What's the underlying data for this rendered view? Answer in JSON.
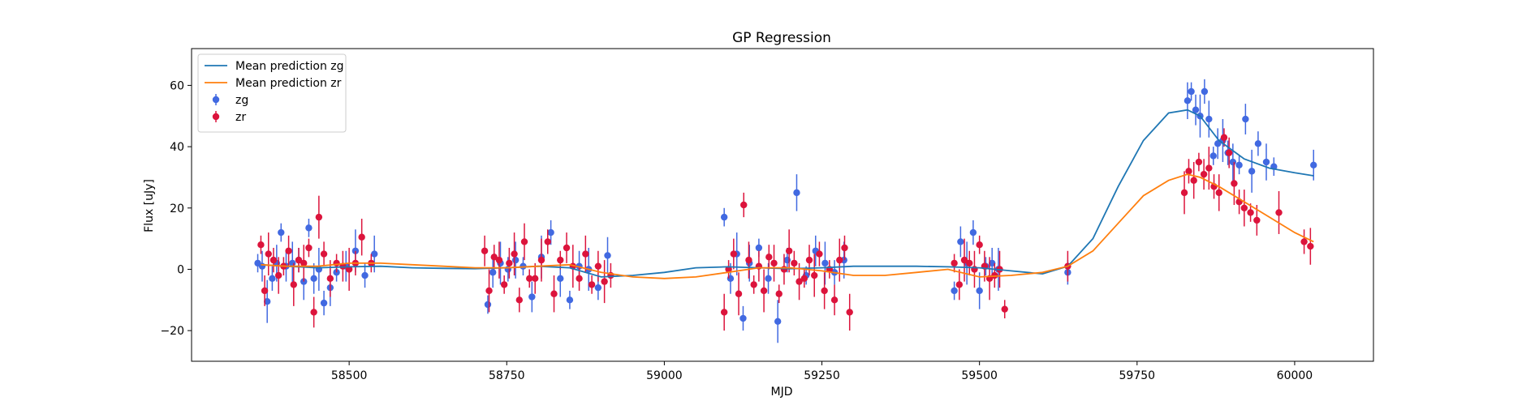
{
  "chart_data": {
    "type": "scatter",
    "title": "GP Regression",
    "xlabel": "MJD",
    "ylabel": "Flux [uJy]",
    "xlim": [
      58250,
      60125
    ],
    "ylim": [
      -30,
      72
    ],
    "xticks": [
      58500,
      58750,
      59000,
      59250,
      59500,
      59750,
      60000
    ],
    "yticks": [
      -20,
      0,
      20,
      40,
      60
    ],
    "grid": false,
    "legend_position": "top-left",
    "legend": [
      "Mean prediction zg",
      "Mean prediction zr",
      "zg",
      "zr"
    ],
    "colors": {
      "zg_line": "#1f77b4",
      "zr_line": "#ff7f0e",
      "zg_points": "#4169e1",
      "zr_points": "#dc143c"
    },
    "series": [
      {
        "name": "Mean prediction zg",
        "kind": "line",
        "x": [
          58360,
          58400,
          58450,
          58500,
          58550,
          58600,
          58650,
          58700,
          58750,
          58800,
          58850,
          58900,
          58950,
          59000,
          59050,
          59100,
          59150,
          59200,
          59250,
          59300,
          59350,
          59400,
          59450,
          59500,
          59550,
          59600,
          59640,
          59680,
          59720,
          59760,
          59800,
          59830,
          59850,
          59880,
          59920,
          59960,
          60000,
          60030
        ],
        "y": [
          1.5,
          1,
          0.5,
          0.8,
          1,
          0.5,
          0.3,
          0.2,
          0.5,
          1,
          0.5,
          -2.5,
          -2,
          -1,
          0.5,
          0.8,
          0.5,
          0.2,
          0.5,
          1,
          1,
          1,
          0.8,
          0.5,
          -0.5,
          -1.5,
          1,
          10,
          27,
          42,
          51,
          52,
          50,
          42,
          36,
          33,
          31.5,
          30.5
        ]
      },
      {
        "name": "Mean prediction zr",
        "kind": "line",
        "x": [
          58360,
          58400,
          58450,
          58500,
          58550,
          58600,
          58650,
          58700,
          58750,
          58800,
          58850,
          58900,
          58950,
          59000,
          59050,
          59100,
          59150,
          59200,
          59250,
          59300,
          59350,
          59400,
          59450,
          59500,
          59550,
          59600,
          59640,
          59680,
          59720,
          59760,
          59800,
          59830,
          59850,
          59880,
          59920,
          59960,
          60000,
          60030
        ],
        "y": [
          1.5,
          1,
          1,
          2,
          2,
          1.5,
          1,
          0.5,
          0.5,
          1,
          1.5,
          -1,
          -2.5,
          -3,
          -2.5,
          -1,
          0.5,
          0.5,
          -0.5,
          -2,
          -2,
          -1,
          0,
          -2.5,
          -2,
          -1,
          1,
          6,
          15,
          24,
          29,
          31,
          30,
          27,
          22,
          17,
          12,
          9
        ]
      },
      {
        "name": "zg",
        "kind": "points",
        "x": [
          58355,
          58362,
          58370,
          58378,
          58385,
          58392,
          58400,
          58410,
          58420,
          58428,
          58436,
          58444,
          58452,
          58460,
          58470,
          58480,
          58495,
          58510,
          58525,
          58540,
          58720,
          58728,
          58740,
          58752,
          58764,
          58776,
          58790,
          58805,
          58820,
          58835,
          58850,
          58865,
          58880,
          58895,
          58910,
          59095,
          59105,
          59115,
          59125,
          59135,
          59150,
          59165,
          59180,
          59195,
          59210,
          59225,
          59240,
          59255,
          59270,
          59285,
          59460,
          59470,
          59480,
          59490,
          59500,
          59510,
          59520,
          59530,
          59640,
          59830,
          59836,
          59843,
          59850,
          59857,
          59864,
          59871,
          59878,
          59886,
          59894,
          59902,
          59912,
          59922,
          59932,
          59942,
          59955,
          59967,
          60030
        ],
        "y": [
          2,
          1,
          -10.5,
          -3,
          2,
          12,
          1,
          2,
          3,
          -4,
          13.5,
          -3,
          0,
          -11,
          -6,
          -1,
          1,
          6,
          -2,
          5,
          -11.5,
          -1,
          2,
          0,
          3,
          1,
          -9,
          4,
          12,
          -3,
          -10,
          1,
          0,
          -6,
          4.5,
          17,
          -3,
          5,
          -16,
          2,
          7,
          -3,
          -17,
          3,
          25,
          -2,
          6,
          2,
          -1,
          3,
          -7,
          9,
          2,
          12,
          -7,
          1,
          2,
          0,
          -1,
          55,
          58,
          52,
          50,
          58,
          49,
          37,
          41,
          42,
          38,
          35,
          34,
          49,
          32,
          41,
          35,
          33.5,
          34
        ]
      },
      {
        "name": "zr",
        "kind": "points",
        "x": [
          58360,
          58366,
          58372,
          58380,
          58388,
          58396,
          58404,
          58412,
          58420,
          58428,
          58436,
          58444,
          58452,
          58460,
          58470,
          58480,
          58490,
          58500,
          58510,
          58520,
          58535,
          58715,
          58722,
          58730,
          58738,
          58746,
          58754,
          58762,
          58770,
          58778,
          58786,
          58795,
          58805,
          58815,
          58825,
          58835,
          58845,
          58855,
          58865,
          58875,
          58885,
          58895,
          58905,
          58915,
          59095,
          59102,
          59110,
          59118,
          59126,
          59134,
          59142,
          59150,
          59158,
          59166,
          59174,
          59182,
          59190,
          59198,
          59206,
          59214,
          59222,
          59230,
          59238,
          59246,
          59254,
          59262,
          59270,
          59278,
          59286,
          59294,
          59460,
          59468,
          59476,
          59484,
          59492,
          59500,
          59508,
          59516,
          59524,
          59532,
          59540,
          59640,
          59825,
          59832,
          59840,
          59848,
          59856,
          59864,
          59872,
          59880,
          59888,
          59896,
          59904,
          59912,
          59920,
          59930,
          59940,
          59975,
          60015,
          60025
        ],
        "y": [
          8,
          -7,
          5,
          3,
          -2,
          1,
          6,
          -5,
          3,
          2,
          7,
          -14,
          17,
          5,
          -3,
          2,
          1,
          0,
          2,
          10.5,
          2,
          6,
          -7,
          4,
          3,
          -5,
          2,
          5,
          -10,
          9,
          -3,
          -3,
          3,
          9,
          -8,
          3,
          7,
          1,
          -3,
          5,
          -5,
          1,
          -4,
          -2,
          -14,
          0,
          5,
          -8,
          21,
          3,
          -5,
          1,
          -7,
          4,
          2,
          -8,
          0,
          6,
          2,
          -4,
          -3,
          3,
          -2,
          5,
          -7,
          0,
          -10,
          3,
          7,
          -14,
          2,
          -5,
          3,
          2,
          0,
          8,
          1,
          -3,
          -2,
          0,
          -13,
          1,
          25,
          32,
          29,
          35,
          31,
          33,
          27,
          25,
          43,
          38,
          28,
          22,
          20,
          18.5,
          16,
          18.5,
          9,
          7.5
        ]
      }
    ]
  }
}
